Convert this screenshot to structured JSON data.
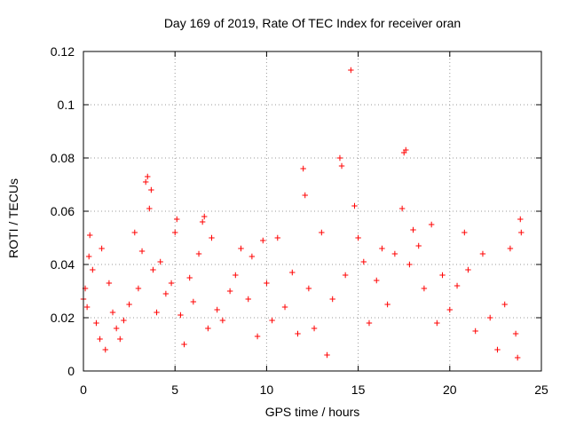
{
  "chart_data": {
    "type": "scatter",
    "title": "Day 169 of 2019, Rate Of TEC Index for receiver oran",
    "xlabel": "GPS time / hours",
    "ylabel": "ROTI / TECUs",
    "xlim": [
      0,
      25
    ],
    "ylim": [
      0,
      0.12
    ],
    "xticks": [
      "0",
      "5",
      "10",
      "15",
      "20",
      "25"
    ],
    "yticks": [
      "0",
      "0.02",
      "0.04",
      "0.06",
      "0.08",
      "0.1",
      "0.12"
    ],
    "grid": true,
    "marker": "+",
    "color": "#ff0000",
    "legend": "none",
    "series": [
      {
        "points": [
          [
            0.0,
            0.027
          ],
          [
            0.1,
            0.031
          ],
          [
            0.2,
            0.024
          ],
          [
            0.3,
            0.043
          ],
          [
            0.35,
            0.051
          ],
          [
            0.5,
            0.038
          ],
          [
            0.7,
            0.018
          ],
          [
            0.9,
            0.012
          ],
          [
            1.0,
            0.046
          ],
          [
            1.2,
            0.008
          ],
          [
            1.4,
            0.033
          ],
          [
            1.6,
            0.022
          ],
          [
            1.8,
            0.016
          ],
          [
            2.0,
            0.012
          ],
          [
            2.2,
            0.019
          ],
          [
            2.5,
            0.025
          ],
          [
            2.8,
            0.052
          ],
          [
            3.0,
            0.031
          ],
          [
            3.2,
            0.045
          ],
          [
            3.4,
            0.071
          ],
          [
            3.5,
            0.073
          ],
          [
            3.6,
            0.061
          ],
          [
            3.7,
            0.068
          ],
          [
            3.8,
            0.038
          ],
          [
            4.0,
            0.022
          ],
          [
            4.2,
            0.041
          ],
          [
            4.5,
            0.029
          ],
          [
            4.8,
            0.033
          ],
          [
            5.0,
            0.052
          ],
          [
            5.1,
            0.057
          ],
          [
            5.3,
            0.021
          ],
          [
            5.5,
            0.01
          ],
          [
            5.8,
            0.035
          ],
          [
            6.0,
            0.026
          ],
          [
            6.3,
            0.044
          ],
          [
            6.5,
            0.056
          ],
          [
            6.6,
            0.058
          ],
          [
            6.8,
            0.016
          ],
          [
            7.0,
            0.05
          ],
          [
            7.3,
            0.023
          ],
          [
            7.6,
            0.019
          ],
          [
            8.0,
            0.03
          ],
          [
            8.3,
            0.036
          ],
          [
            8.6,
            0.046
          ],
          [
            9.0,
            0.027
          ],
          [
            9.2,
            0.043
          ],
          [
            9.5,
            0.013
          ],
          [
            9.8,
            0.049
          ],
          [
            10.0,
            0.033
          ],
          [
            10.3,
            0.019
          ],
          [
            10.6,
            0.05
          ],
          [
            11.0,
            0.024
          ],
          [
            11.4,
            0.037
          ],
          [
            11.7,
            0.014
          ],
          [
            12.0,
            0.076
          ],
          [
            12.1,
            0.066
          ],
          [
            12.3,
            0.031
          ],
          [
            12.6,
            0.016
          ],
          [
            13.0,
            0.052
          ],
          [
            13.3,
            0.006
          ],
          [
            13.6,
            0.027
          ],
          [
            14.0,
            0.08
          ],
          [
            14.1,
            0.077
          ],
          [
            14.3,
            0.036
          ],
          [
            14.6,
            0.113
          ],
          [
            14.8,
            0.062
          ],
          [
            15.0,
            0.05
          ],
          [
            15.3,
            0.041
          ],
          [
            15.6,
            0.018
          ],
          [
            16.0,
            0.034
          ],
          [
            16.3,
            0.046
          ],
          [
            16.6,
            0.025
          ],
          [
            17.0,
            0.044
          ],
          [
            17.4,
            0.061
          ],
          [
            17.5,
            0.082
          ],
          [
            17.6,
            0.083
          ],
          [
            17.8,
            0.04
          ],
          [
            18.0,
            0.053
          ],
          [
            18.3,
            0.047
          ],
          [
            18.6,
            0.031
          ],
          [
            19.0,
            0.055
          ],
          [
            19.3,
            0.018
          ],
          [
            19.6,
            0.036
          ],
          [
            20.0,
            0.023
          ],
          [
            20.4,
            0.032
          ],
          [
            20.8,
            0.052
          ],
          [
            21.0,
            0.038
          ],
          [
            21.4,
            0.015
          ],
          [
            21.8,
            0.044
          ],
          [
            22.2,
            0.02
          ],
          [
            22.6,
            0.008
          ],
          [
            23.0,
            0.025
          ],
          [
            23.3,
            0.046
          ],
          [
            23.6,
            0.014
          ],
          [
            23.7,
            0.005
          ],
          [
            23.85,
            0.057
          ],
          [
            23.9,
            0.052
          ]
        ]
      }
    ]
  }
}
